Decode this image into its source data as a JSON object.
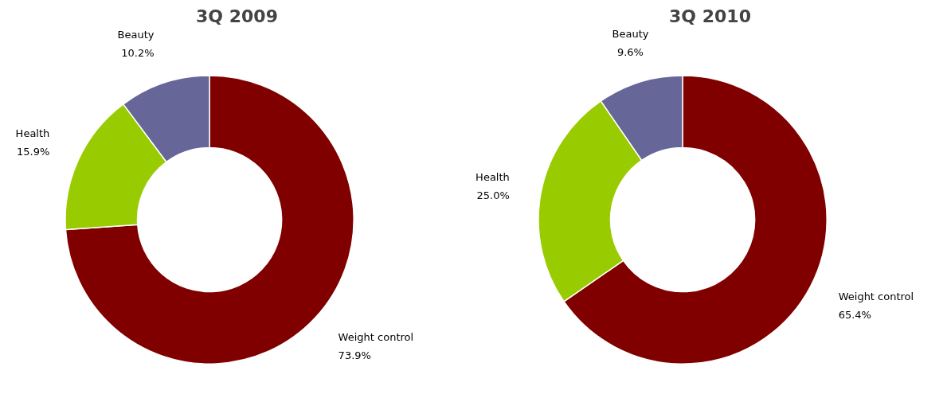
{
  "chart_data": [
    {
      "type": "donut",
      "title": "3Q 2009",
      "categories": [
        "Weight control",
        "Health",
        "Beauty"
      ],
      "values": [
        73.9,
        15.9,
        10.2
      ],
      "colors": [
        "#800000",
        "#99cc00",
        "#666699"
      ],
      "value_labels": [
        "73.9%",
        "15.9%",
        "10.2%"
      ],
      "legend": false
    },
    {
      "type": "donut",
      "title": "3Q 2010",
      "categories": [
        "Weight control",
        "Health",
        "Beauty"
      ],
      "values": [
        65.4,
        25.0,
        9.6
      ],
      "colors": [
        "#800000",
        "#99cc00",
        "#666699"
      ],
      "value_labels": [
        "65.4%",
        "25.0%",
        "9.6%"
      ],
      "legend": false
    }
  ]
}
